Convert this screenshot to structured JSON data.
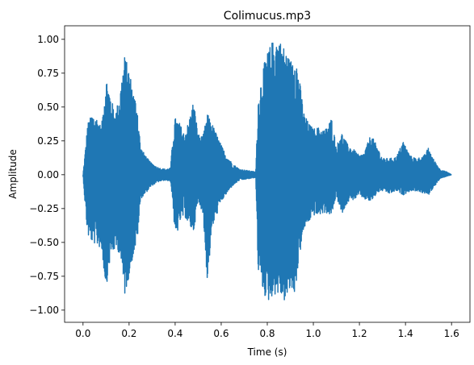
{
  "chart_data": {
    "type": "line",
    "title": "Colimucus.mp3",
    "xlabel": "Time (s)",
    "ylabel": "Amplitude",
    "xlim": [
      -0.08,
      1.68
    ],
    "ylim": [
      -1.09,
      1.1
    ],
    "x_ticks": [
      0.0,
      0.2,
      0.4,
      0.6,
      0.8,
      1.0,
      1.2,
      1.4,
      1.6
    ],
    "x_tick_labels": [
      "0.0",
      "0.2",
      "0.4",
      "0.6",
      "0.8",
      "1.0",
      "1.2",
      "1.4",
      "1.6"
    ],
    "y_ticks": [
      -1.0,
      -0.75,
      -0.5,
      -0.25,
      0.0,
      0.25,
      0.5,
      0.75,
      1.0
    ],
    "y_tick_labels": [
      "−1.00",
      "−0.75",
      "−0.50",
      "−0.25",
      "0.00",
      "0.25",
      "0.50",
      "0.75",
      "1.00"
    ],
    "grid": false,
    "legend": false,
    "series": [
      {
        "color": "#1f77b4",
        "envelope": {
          "time_s": [
            0.0,
            0.01,
            0.02,
            0.04,
            0.06,
            0.08,
            0.1,
            0.12,
            0.14,
            0.16,
            0.18,
            0.2,
            0.22,
            0.235,
            0.25,
            0.28,
            0.3,
            0.33,
            0.36,
            0.38,
            0.39,
            0.4,
            0.42,
            0.44,
            0.46,
            0.48,
            0.5,
            0.52,
            0.54,
            0.56,
            0.58,
            0.6,
            0.62,
            0.65,
            0.68,
            0.72,
            0.75,
            0.76,
            0.78,
            0.8,
            0.82,
            0.84,
            0.86,
            0.88,
            0.9,
            0.92,
            0.94,
            0.96,
            0.98,
            1.0,
            1.02,
            1.05,
            1.08,
            1.1,
            1.12,
            1.15,
            1.18,
            1.2,
            1.22,
            1.25,
            1.28,
            1.3,
            1.33,
            1.36,
            1.39,
            1.42,
            1.45,
            1.48,
            1.5,
            1.52,
            1.55,
            1.58,
            1.6
          ],
          "max": [
            0.0,
            0.18,
            0.38,
            0.45,
            0.42,
            0.35,
            0.73,
            0.58,
            0.45,
            0.6,
            0.88,
            0.78,
            0.6,
            0.52,
            0.2,
            0.12,
            0.08,
            0.05,
            0.04,
            0.05,
            0.28,
            0.42,
            0.38,
            0.3,
            0.4,
            0.55,
            0.3,
            0.28,
            0.45,
            0.38,
            0.3,
            0.22,
            0.15,
            0.08,
            0.04,
            0.03,
            0.02,
            0.55,
            0.78,
            0.9,
            0.98,
            1.01,
            0.98,
            0.92,
            0.84,
            0.92,
            0.7,
            0.45,
            0.38,
            0.34,
            0.35,
            0.33,
            0.42,
            0.2,
            0.32,
            0.22,
            0.18,
            0.14,
            0.16,
            0.3,
            0.2,
            0.12,
            0.12,
            0.13,
            0.25,
            0.14,
            0.12,
            0.14,
            0.2,
            0.12,
            0.04,
            0.02,
            0.0
          ],
          "min": [
            0.0,
            -0.25,
            -0.45,
            -0.5,
            -0.52,
            -0.55,
            -0.84,
            -0.6,
            -0.55,
            -0.58,
            -0.9,
            -0.75,
            -0.58,
            -0.5,
            -0.18,
            -0.12,
            -0.08,
            -0.05,
            -0.04,
            -0.05,
            -0.2,
            -0.5,
            -0.35,
            -0.3,
            -0.38,
            -0.42,
            -0.2,
            -0.28,
            -0.8,
            -0.4,
            -0.3,
            -0.2,
            -0.15,
            -0.08,
            -0.04,
            -0.03,
            -0.02,
            -0.7,
            -0.85,
            -0.95,
            -0.9,
            -0.88,
            -0.9,
            -0.95,
            -0.85,
            -0.88,
            -0.6,
            -0.4,
            -0.35,
            -0.3,
            -0.3,
            -0.28,
            -0.3,
            -0.15,
            -0.3,
            -0.2,
            -0.18,
            -0.15,
            -0.18,
            -0.2,
            -0.13,
            -0.12,
            -0.14,
            -0.12,
            -0.15,
            -0.12,
            -0.12,
            -0.14,
            -0.15,
            -0.1,
            -0.03,
            -0.01,
            0.0
          ]
        }
      }
    ]
  }
}
